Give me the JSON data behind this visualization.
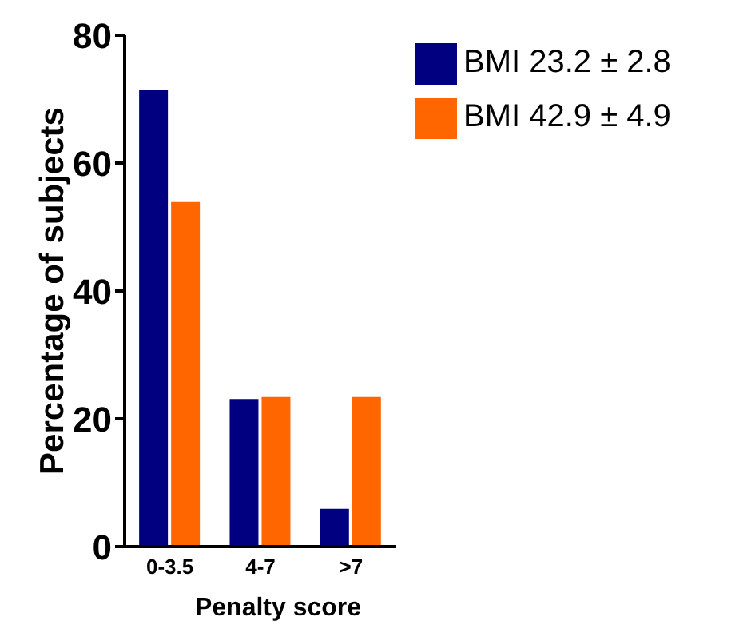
{
  "chart_data": {
    "type": "bar",
    "xlabel": "Penalty score",
    "ylabel": "Percentage of subjects",
    "categories": [
      "0-3.5",
      "4-7",
      ">7"
    ],
    "series": [
      {
        "name": "BMI 23.2 ± 2.8",
        "color": "#000080",
        "values": [
          71.5,
          23.1,
          5.9
        ]
      },
      {
        "name": "BMI 42.9 ± 4.9",
        "color": "#ff6600",
        "values": [
          53.9,
          23.4,
          23.4
        ]
      }
    ],
    "ylim": [
      0,
      80
    ],
    "yticks": [
      0,
      20,
      40,
      60,
      80
    ],
    "legend": "top right"
  }
}
